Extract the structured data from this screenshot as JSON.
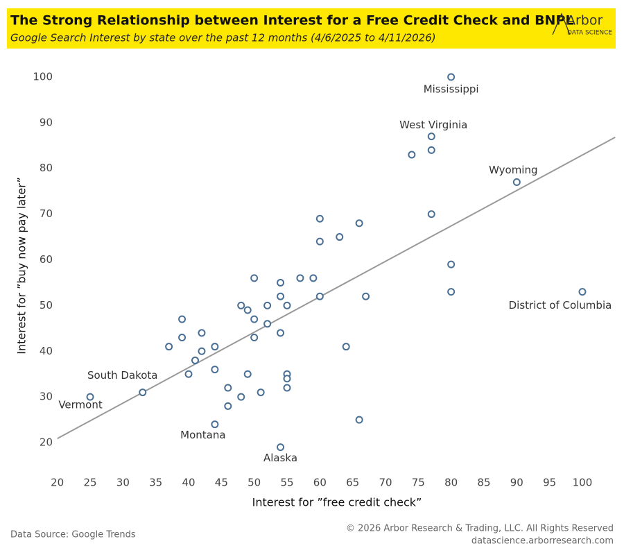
{
  "chart_data": {
    "type": "scatter",
    "title": "The Strong Relationship between Interest for a Free Credit Check and BNPL",
    "subtitle": "Google Search Interest by state over the past 12 months (4/6/2025 to 4/11/2026)",
    "logo": {
      "name": "Arbor",
      "tagline": "DATA SCIENCE"
    },
    "x_label": "Interest for ”free credit check”",
    "y_label": "Interest for ”buy now pay later”",
    "xlim": [
      20,
      105
    ],
    "ylim": [
      17,
      103
    ],
    "xticks": [
      20,
      25,
      30,
      35,
      40,
      45,
      50,
      55,
      60,
      65,
      70,
      75,
      80,
      85,
      90,
      95,
      100
    ],
    "yticks": [
      20,
      30,
      40,
      50,
      60,
      70,
      80,
      90,
      100
    ],
    "grid": false,
    "series": [
      {
        "color": "#4a6f94",
        "x": [
          80,
          77,
          77,
          74,
          90,
          77,
          60,
          66,
          63,
          60,
          80,
          80,
          100,
          67,
          60,
          57,
          59,
          54,
          54,
          55,
          50,
          52,
          48,
          49,
          50,
          52,
          50,
          54,
          64,
          39,
          39,
          37,
          42,
          42,
          44,
          41,
          40,
          44,
          33,
          25,
          46,
          49,
          55,
          55,
          55,
          51,
          48,
          46,
          44,
          66,
          54
        ],
        "y": [
          100,
          87,
          84,
          83,
          77,
          70,
          69,
          68,
          65,
          64,
          59,
          53,
          53,
          52,
          52,
          56,
          56,
          55,
          52,
          50,
          56,
          50,
          50,
          49,
          47,
          46,
          43,
          44,
          41,
          47,
          43,
          41,
          44,
          40,
          41,
          38,
          35,
          36,
          31,
          30,
          32,
          35,
          35,
          34,
          32,
          31,
          30,
          28,
          24,
          25,
          19
        ],
        "labels": [
          "Mississippi",
          "West Virginia",
          null,
          null,
          "Wyoming",
          null,
          null,
          null,
          null,
          null,
          null,
          null,
          "District of Columbia",
          null,
          null,
          null,
          null,
          null,
          null,
          null,
          null,
          null,
          null,
          null,
          null,
          null,
          null,
          null,
          null,
          null,
          null,
          null,
          null,
          null,
          null,
          null,
          null,
          null,
          "South Dakota",
          "Vermont",
          null,
          null,
          null,
          null,
          null,
          null,
          null,
          null,
          "Montana",
          null,
          "Alaska"
        ]
      }
    ],
    "trendline": {
      "color": "#999999",
      "x": [
        20,
        105
      ],
      "y": [
        20.9,
        86.8
      ]
    },
    "source": "Data Source: Google Trends",
    "copyright": "© 2026 Arbor Research & Trading, LLC. All Rights Reserved",
    "website": "datascience.arborresearch.com"
  }
}
